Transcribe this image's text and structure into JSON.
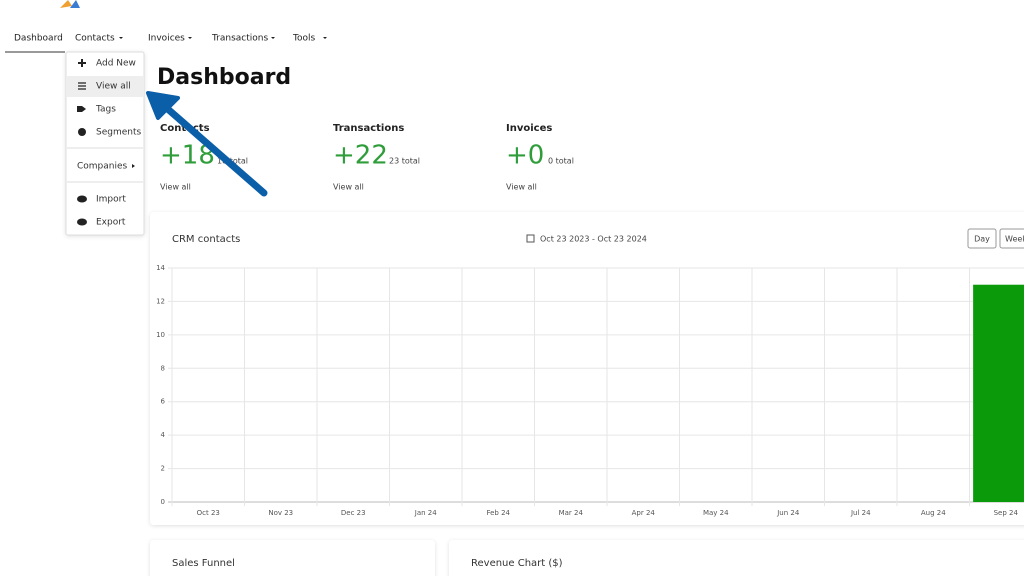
{
  "nav": {
    "items": [
      "Dashboard",
      "Contacts",
      "Invoices",
      "Transactions",
      "Tools"
    ]
  },
  "dropdown": {
    "items": [
      "Add New",
      "View all",
      "Tags",
      "Segments",
      "Companies",
      "Import",
      "Export"
    ]
  },
  "page_title": "Dashboard",
  "stats": [
    {
      "label": "Contacts",
      "value": "+18",
      "total": "18 total",
      "link": "View all"
    },
    {
      "label": "Transactions",
      "value": "+22",
      "total": "23 total",
      "link": "View all"
    },
    {
      "label": "Invoices",
      "value": "+0",
      "total": "0 total",
      "link": "View all"
    }
  ],
  "chart_card": {
    "title": "CRM contacts",
    "date_range": "Oct 23 2023 - Oct 23 2024",
    "buttons": [
      "Day",
      "Week"
    ]
  },
  "chart_data": {
    "type": "bar",
    "categories": [
      "Oct 23",
      "Nov 23",
      "Dec 23",
      "Jan 24",
      "Feb 24",
      "Mar 24",
      "Apr 24",
      "May 24",
      "Jun 24",
      "Jul 24",
      "Aug 24",
      "Sep 24"
    ],
    "values": [
      0,
      0,
      0,
      0,
      0,
      0,
      0,
      0,
      0,
      0,
      0,
      13
    ],
    "color": "#0a9a0a",
    "ylim": [
      0,
      14
    ],
    "yticks": [
      0,
      2,
      4,
      6,
      8,
      10,
      12,
      14
    ],
    "grid": true
  },
  "bottom_cards": [
    "Sales Funnel",
    "Revenue Chart ($)"
  ]
}
